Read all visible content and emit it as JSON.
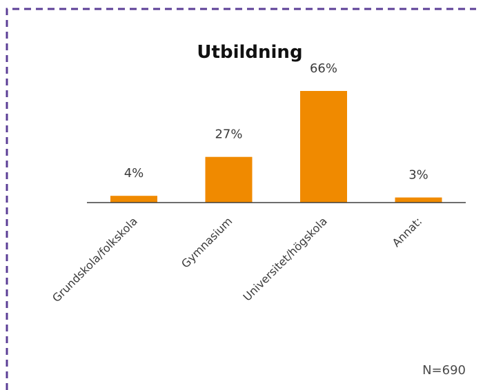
{
  "chart_data": {
    "type": "bar",
    "title": "Utbildning",
    "categories": [
      "Grundskola/folkskola",
      "Gymnasium",
      "Universitet/högskola",
      "Annat:"
    ],
    "values": [
      4,
      27,
      66,
      3
    ],
    "data_labels": [
      "4%",
      "27%",
      "66%",
      "3%"
    ],
    "xlabel": "",
    "ylabel": "",
    "ylim": [
      0,
      70
    ],
    "grid": false,
    "legend": "none",
    "note": "N=690",
    "bar_color": "#F08A00",
    "frame_color": "#5B3E96"
  }
}
